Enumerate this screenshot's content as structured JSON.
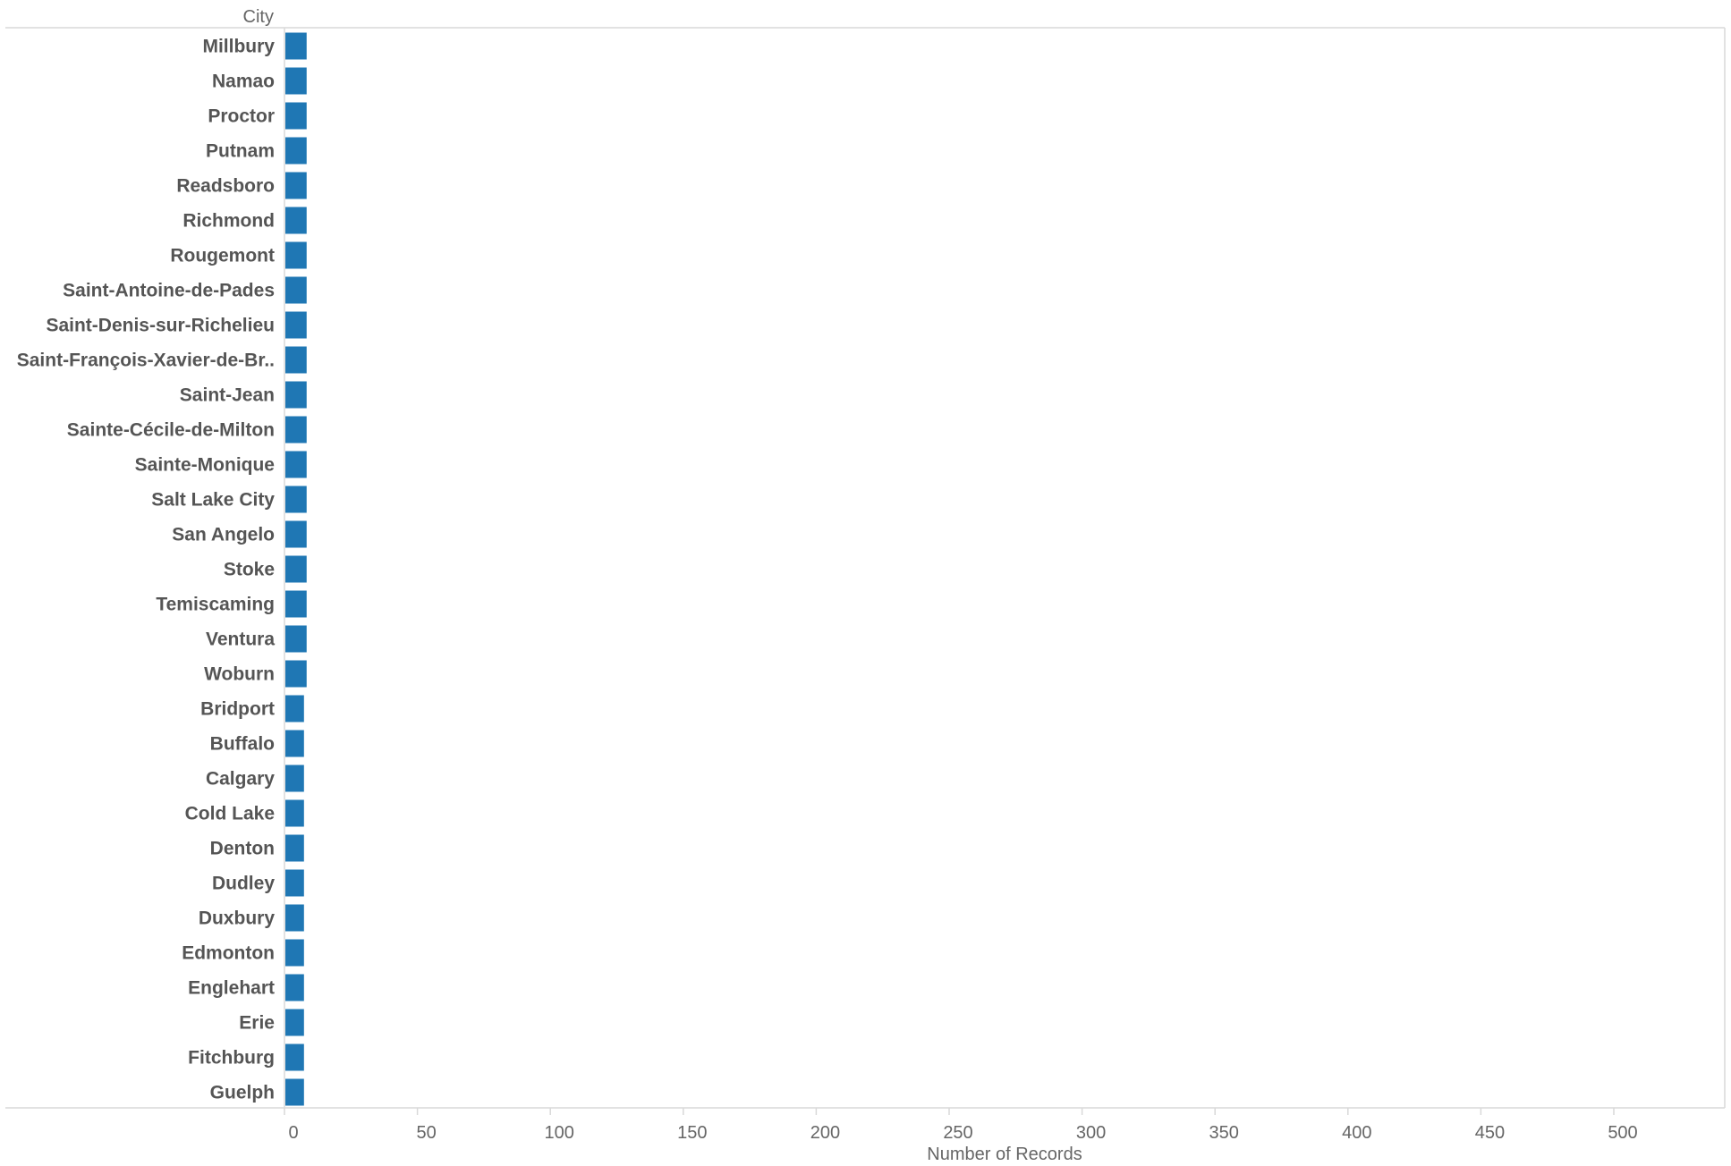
{
  "chart_data": {
    "type": "bar",
    "orientation": "horizontal",
    "row_header": "City",
    "xlabel": "Number of Records",
    "xlim": [
      0,
      540
    ],
    "x_ticks": [
      0,
      50,
      100,
      150,
      200,
      250,
      300,
      350,
      400,
      450,
      500
    ],
    "grid": false,
    "bar_color": "#1f77b4",
    "categories": [
      "Millbury",
      "Namao",
      "Proctor",
      "Putnam",
      "Readsboro",
      "Richmond",
      "Rougemont",
      "Saint-Antoine-de-Pades",
      "Saint-Denis-sur-Richelieu",
      "Saint-François-Xavier-de-Br..",
      "Saint-Jean",
      "Sainte-Cécile-de-Milton",
      "Sainte-Monique",
      "Salt Lake City",
      "San Angelo",
      "Stoke",
      "Temiscaming",
      "Ventura",
      "Woburn",
      "Bridport",
      "Buffalo",
      "Calgary",
      "Cold Lake",
      "Denton",
      "Dudley",
      "Duxbury",
      "Edmonton",
      "Englehart",
      "Erie",
      "Fitchburg",
      "Guelph"
    ],
    "values": [
      8,
      8,
      8,
      8,
      8,
      8,
      8,
      8,
      8,
      8,
      8,
      8,
      8,
      8,
      8,
      8,
      8,
      8,
      8,
      7,
      7,
      7,
      7,
      7,
      7,
      7,
      7,
      7,
      7,
      7,
      7
    ]
  }
}
